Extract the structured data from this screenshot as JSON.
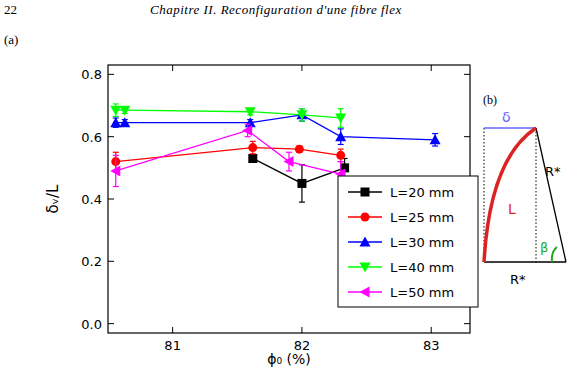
{
  "page": {
    "number": "22",
    "header": "Chapitre II. Reconfiguration d'une fibre flex"
  },
  "chart_data": {
    "type": "line",
    "annotations": [
      "(a)"
    ],
    "x_label": "ϕ₀ (%)",
    "y_label": "δᵥ/L",
    "xlim": [
      80.5,
      83.3
    ],
    "xticks": [
      81,
      82,
      83
    ],
    "ylim": [
      -0.03,
      0.83
    ],
    "yticks": [
      {
        "value": 0,
        "label": "0.0"
      },
      {
        "value": 0.2,
        "label": "0.2"
      },
      {
        "value": 0.4,
        "label": "0.4"
      },
      {
        "value": 0.6,
        "label": "0.6"
      },
      {
        "value": 0.8,
        "label": "0.8"
      }
    ],
    "legend": "right",
    "series": [
      {
        "name": "L=20 mm",
        "color": "#000000",
        "marker": "square",
        "x": [
          81.62,
          82.0,
          82.33
        ],
        "values": [
          0.53,
          0.45,
          0.5
        ],
        "errors": [
          0.005,
          0.06,
          0.03
        ]
      },
      {
        "name": "L=25 mm",
        "color": "#ff0000",
        "marker": "circle",
        "x": [
          80.56,
          81.62,
          81.98,
          82.3
        ],
        "values": [
          0.52,
          0.565,
          0.56,
          0.54
        ],
        "errors": [
          0.03,
          0.02,
          0.01,
          0.02
        ]
      },
      {
        "name": "L=30 mm",
        "color": "#0000ff",
        "marker": "triangle-up",
        "x": [
          80.56,
          80.63,
          81.6,
          82.0,
          82.3,
          83.03
        ],
        "values": [
          0.645,
          0.645,
          0.645,
          0.67,
          0.6,
          0.59
        ],
        "errors": [
          0.015,
          0.01,
          0.01,
          0.02,
          0.025,
          0.02
        ]
      },
      {
        "name": "L=40 mm",
        "color": "#00ff00",
        "marker": "triangle-down",
        "x": [
          80.56,
          80.63,
          81.6,
          82.0,
          82.3
        ],
        "values": [
          0.685,
          0.685,
          0.68,
          0.67,
          0.66
        ],
        "errors": [
          0.02,
          0.01,
          0.01,
          0.02,
          0.03
        ]
      },
      {
        "name": "L=50 mm",
        "color": "#ff00ff",
        "marker": "triangle-left",
        "x": [
          80.56,
          81.58,
          81.9,
          82.3
        ],
        "values": [
          0.49,
          0.62,
          0.52,
          0.48
        ],
        "errors": [
          0.05,
          0.02,
          0.03,
          0.04
        ]
      }
    ]
  },
  "diagram": {
    "label": "(b)",
    "delta": "δ",
    "arc": "L",
    "side": "R*",
    "base": "R*",
    "angle": "β"
  }
}
